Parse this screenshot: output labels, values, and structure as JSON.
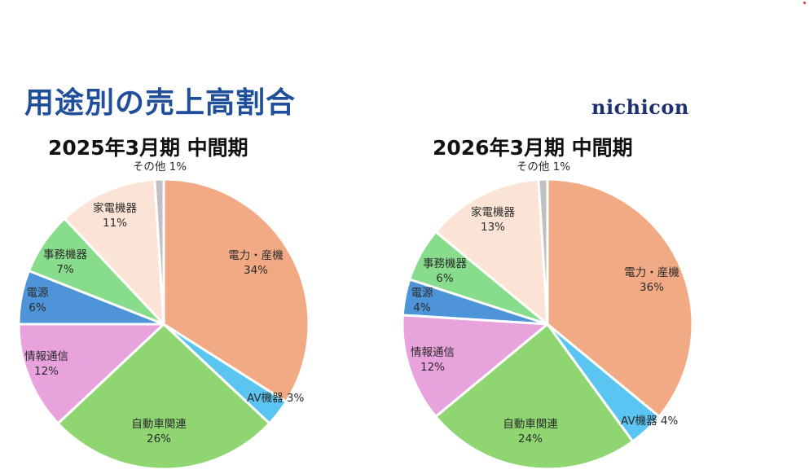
{
  "title": "用途別の売上高割合",
  "logo": "nichicon",
  "chart_data": [
    {
      "type": "pie",
      "title": "2025年3月期 中間期",
      "slices": [
        {
          "label": "電力・産機",
          "pct_label": "34%",
          "value": 34,
          "color": "#f2aa85"
        },
        {
          "label": "AV機器",
          "pct_label": "3%",
          "value": 3,
          "color": "#5bc5f2"
        },
        {
          "label": "自動車関連",
          "pct_label": "26%",
          "value": 26,
          "color": "#8fd672"
        },
        {
          "label": "情報通信",
          "pct_label": "12%",
          "value": 12,
          "color": "#e8a2dc"
        },
        {
          "label": "電源",
          "pct_label": "6%",
          "value": 6,
          "color": "#4d94d8"
        },
        {
          "label": "事務機器",
          "pct_label": "7%",
          "value": 7,
          "color": "#88dd8c"
        },
        {
          "label": "家電機器",
          "pct_label": "11%",
          "value": 11,
          "color": "#fbe3d6"
        },
        {
          "label": "その他",
          "pct_label": "1%",
          "value": 1,
          "color": "#c0c0c0"
        }
      ]
    },
    {
      "type": "pie",
      "title": "2026年3月期 中間期",
      "slices": [
        {
          "label": "電力・産機",
          "pct_label": "36%",
          "value": 36,
          "color": "#f2aa85"
        },
        {
          "label": "AV機器",
          "pct_label": "4%",
          "value": 4,
          "color": "#5bc5f2"
        },
        {
          "label": "自動車関連",
          "pct_label": "24%",
          "value": 24,
          "color": "#8fd672"
        },
        {
          "label": "情報通信",
          "pct_label": "12%",
          "value": 12,
          "color": "#e8a2dc"
        },
        {
          "label": "電源",
          "pct_label": "4%",
          "value": 4,
          "color": "#4d94d8"
        },
        {
          "label": "事務機器",
          "pct_label": "6%",
          "value": 6,
          "color": "#88dd8c"
        },
        {
          "label": "家電機器",
          "pct_label": "13%",
          "value": 13,
          "color": "#fbe3d6"
        },
        {
          "label": "その他",
          "pct_label": "1%",
          "value": 1,
          "color": "#c0c0c0"
        }
      ]
    }
  ]
}
